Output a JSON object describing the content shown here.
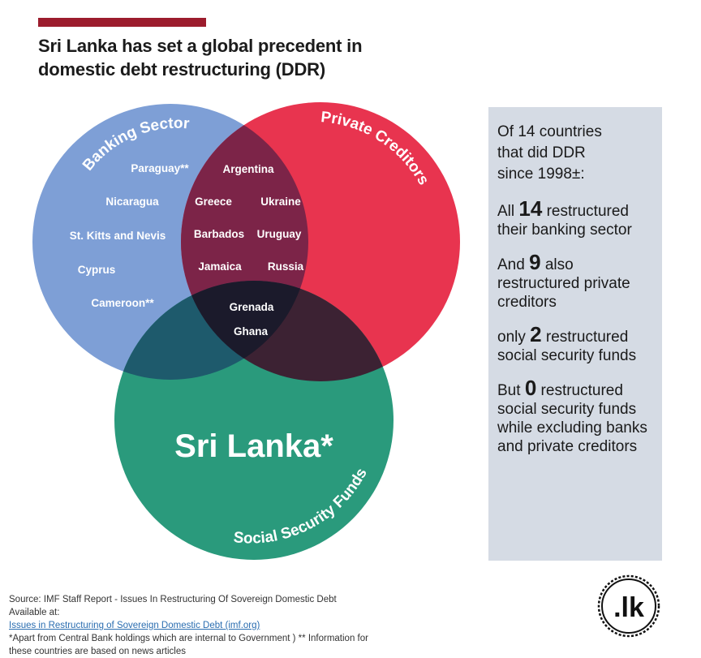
{
  "title": {
    "line1": "Sri Lanka has set a global precedent in",
    "line2": "domestic debt restructuring (DDR)"
  },
  "venn": {
    "sets": [
      {
        "name": "Banking Sector",
        "color": "#7e9fd6"
      },
      {
        "name": "Private Creditors",
        "color": "#e8344f"
      },
      {
        "name": "Social Security Funds",
        "color": "#2a9a7c"
      }
    ],
    "banking_only": [
      "Paraguay**",
      "Nicaragua",
      "St. Kitts and Nevis",
      "Cyprus",
      "Cameroon**"
    ],
    "banking_private": [
      "Argentina",
      "Greece",
      "Ukraine",
      "Barbados",
      "Uruguay",
      "Jamaica",
      "Russia"
    ],
    "all_three": [
      "Grenada",
      "Ghana"
    ],
    "social_only": "Sri Lanka*"
  },
  "sidebar": {
    "intro": [
      "Of 14 countries",
      "that did DDR",
      "since 1998±:"
    ],
    "stats": [
      {
        "pre": "All ",
        "num": "14",
        "post": " restructured their banking sector"
      },
      {
        "pre": "And ",
        "num": "9",
        "post": " also restructured private creditors"
      },
      {
        "pre": "only ",
        "num": "2",
        "post": " restructured social security funds"
      },
      {
        "pre": "But ",
        "num": "0",
        "post": " restructured social security funds while excluding banks and private creditors"
      }
    ]
  },
  "footer": {
    "source": "Source: IMF Staff Report - Issues In Restructuring Of Sovereign Domestic Debt",
    "available_prefix": "Available at: ",
    "link_text": "Issues in Restructuring of Sovereign Domestic Debt (imf.org)",
    "note1": "*Apart from Central Bank holdings which are internal to Government ) ** Information for",
    "note2": "these countries are based on news articles"
  },
  "logo": {
    "text": ".lk"
  }
}
